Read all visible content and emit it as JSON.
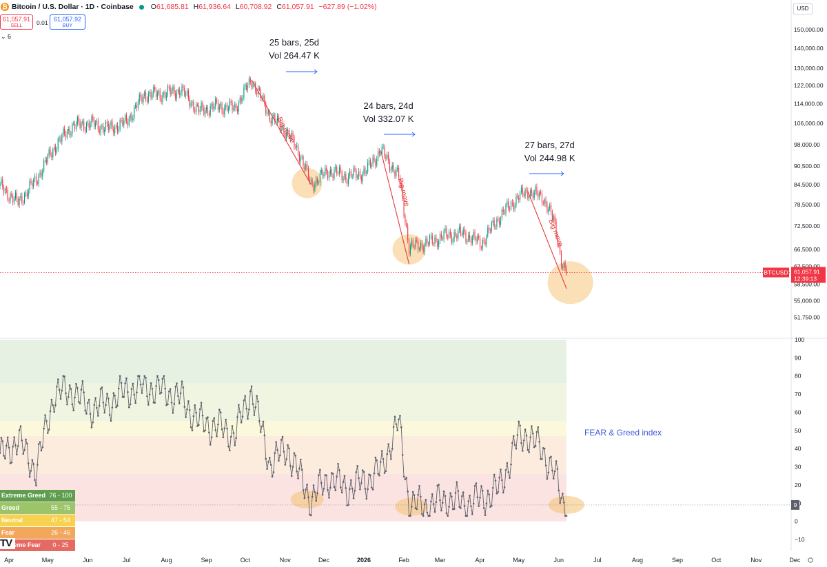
{
  "header": {
    "logo_glyph": "₿",
    "title": "Bitcoin / U.S. Dollar · 1D · Coinbase",
    "ohlc": [
      {
        "label": "O",
        "value": "61,685.81"
      },
      {
        "label": "H",
        "value": "61,936.64"
      },
      {
        "label": "L",
        "value": "60,708.92"
      },
      {
        "label": "C",
        "value": "61,057.91"
      }
    ],
    "change": "−627.89 (−1.02%)",
    "currency": "USD"
  },
  "trade": {
    "sell_price": "61,057.91",
    "sell_label": "SELL",
    "spread": "0.01",
    "buy_price": "61,057.92",
    "buy_label": "BUY",
    "indicators_toggle": "⌄ 6"
  },
  "price_axis": {
    "ticks": [
      "150,000.00",
      "140,000.00",
      "130,000.00",
      "122,000.00",
      "114,000.00",
      "106,000.00",
      "98,000.00",
      "90,500.00",
      "84,500.00",
      "78,500.00",
      "72,500.00",
      "66,500.00",
      "62,500.00",
      "58,500.00",
      "55,000.00",
      "51,750.00"
    ],
    "symbol_label": "BTCUSD",
    "last_price": "61,057.91",
    "countdown": "12:39:13"
  },
  "index_axis": {
    "ticks": [
      "100",
      "90",
      "80",
      "70",
      "60",
      "50",
      "40",
      "30",
      "20",
      "10",
      "0",
      "−10"
    ],
    "current_value": "9"
  },
  "time_axis": {
    "labels": [
      "Apr",
      "May",
      "Jun",
      "Jul",
      "Aug",
      "Sep",
      "Oct",
      "Nov",
      "Dec",
      "2026",
      "Feb",
      "Mar",
      "Apr",
      "May",
      "Jun",
      "Jul",
      "Aug",
      "Sep",
      "Oct",
      "Nov",
      "Dec"
    ]
  },
  "annotations": {
    "measures": [
      {
        "line1": "25 bars, 25d",
        "line2": "Vol 264.47 K"
      },
      {
        "line1": "24 bars, 24d",
        "line2": "Vol 332.07 K"
      },
      {
        "line1": "27 bars, 27d",
        "line2": "Vol 244.98 K"
      }
    ],
    "big_move_label": "Big move",
    "fear_greed_title": "FEAR & Greed index"
  },
  "zone_legend": [
    {
      "name": "Extreme Greed",
      "range": "76 - 100",
      "color": "#5f9e4f"
    },
    {
      "name": "Greed",
      "range": "55 - 75",
      "color": "#9cc46a"
    },
    {
      "name": "Neutral",
      "range": "47 - 54",
      "color": "#f6d24e"
    },
    {
      "name": "Fear",
      "range": "26 - 46",
      "color": "#f2a85a"
    },
    {
      "name": "Extreme Fear",
      "range": "0 - 25",
      "color": "#e56a62"
    }
  ],
  "brand_mark": "TV",
  "colors": {
    "up": "#089981",
    "down": "#f23645",
    "annotation_arrow": "#2962ff",
    "highlight": "#f5c57c",
    "index_line": "#5d606b",
    "fear_greed_title": "#3d5bd9"
  },
  "chart_data": [
    {
      "type": "candlestick",
      "title": "Bitcoin / U.S. Dollar · 1D · Coinbase",
      "y_scale": "log",
      "ylim": [
        50500,
        155000
      ],
      "x": [
        "2025-03-25",
        "2025-04-08",
        "2025-04-22",
        "2025-05-06",
        "2025-05-20",
        "2025-06-03",
        "2025-06-17",
        "2025-07-01",
        "2025-07-15",
        "2025-07-29",
        "2025-08-12",
        "2025-08-26",
        "2025-09-09",
        "2025-09-23",
        "2025-10-06",
        "2025-10-20",
        "2025-11-03",
        "2025-11-12",
        "2025-11-21",
        "2025-12-05",
        "2025-12-19",
        "2026-01-02",
        "2026-01-14",
        "2026-01-28",
        "2026-02-05",
        "2026-02-19",
        "2026-03-05",
        "2026-03-19",
        "2026-04-02",
        "2026-04-16",
        "2026-04-30",
        "2026-05-08",
        "2026-05-20",
        "2026-05-28",
        "2026-06-04",
        "2026-06-07"
      ],
      "close": [
        84000,
        79000,
        86000,
        97000,
        105000,
        106000,
        104000,
        106500,
        118000,
        118000,
        120000,
        111000,
        113000,
        112000,
        124500,
        109000,
        102000,
        95000,
        84500,
        89000,
        87000,
        88500,
        96000,
        87000,
        67000,
        68000,
        70000,
        70500,
        68000,
        75000,
        80500,
        82500,
        80500,
        74000,
        62500,
        61057.91
      ],
      "note": "closing prices sampled at roughly 2-week intervals, read from the price axis"
    },
    {
      "type": "line",
      "title": "FEAR & Greed index",
      "ylim": [
        -10,
        100
      ],
      "x": [
        "2025-03-25",
        "2025-04-08",
        "2025-04-22",
        "2025-05-06",
        "2025-05-20",
        "2025-06-03",
        "2025-06-17",
        "2025-07-01",
        "2025-07-15",
        "2025-07-29",
        "2025-08-12",
        "2025-08-26",
        "2025-09-09",
        "2025-09-23",
        "2025-10-06",
        "2025-10-20",
        "2025-11-03",
        "2025-11-12",
        "2025-11-21",
        "2025-12-05",
        "2025-12-19",
        "2026-01-02",
        "2026-01-14",
        "2026-01-28",
        "2026-02-05",
        "2026-02-19",
        "2026-03-05",
        "2026-03-19",
        "2026-04-02",
        "2026-04-16",
        "2026-04-30",
        "2026-05-08",
        "2026-05-20",
        "2026-05-28",
        "2026-06-04",
        "2026-06-07"
      ],
      "values": [
        35,
        45,
        28,
        70,
        72,
        62,
        65,
        72,
        74,
        72,
        68,
        55,
        52,
        48,
        72,
        32,
        40,
        25,
        12,
        24,
        18,
        22,
        28,
        55,
        10,
        8,
        12,
        10,
        12,
        18,
        45,
        48,
        38,
        28,
        10,
        9
      ],
      "zones": [
        {
          "name": "Extreme Greed",
          "range": [
            76,
            100
          ]
        },
        {
          "name": "Greed",
          "range": [
            55,
            75
          ]
        },
        {
          "name": "Neutral",
          "range": [
            47,
            54
          ]
        },
        {
          "name": "Fear",
          "range": [
            26,
            46
          ]
        },
        {
          "name": "Extreme Fear",
          "range": [
            0,
            25
          ]
        }
      ]
    }
  ]
}
